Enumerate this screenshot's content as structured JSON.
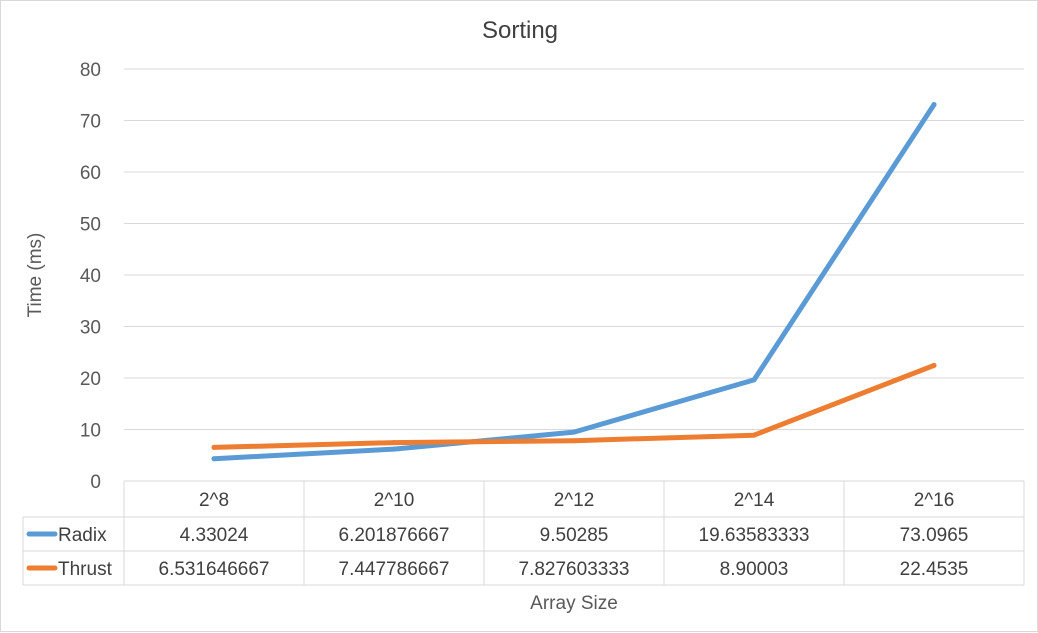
{
  "chart_data": {
    "type": "line",
    "title": "Sorting",
    "xlabel": "Array Size",
    "ylabel": "Time (ms)",
    "categories": [
      "2^8",
      "2^10",
      "2^12",
      "2^14",
      "2^16"
    ],
    "ylim": [
      0,
      80
    ],
    "yticks": [
      0,
      10,
      20,
      30,
      40,
      50,
      60,
      70,
      80
    ],
    "grid": true,
    "legend": "data-table",
    "series": [
      {
        "name": "Radix",
        "color": "#5b9bd5",
        "values": [
          4.33024,
          6.201876667,
          9.50285,
          19.63583333,
          73.0965
        ],
        "labels": [
          "4.33024",
          "6.201876667",
          "9.50285",
          "19.63583333",
          "73.0965"
        ]
      },
      {
        "name": "Thrust",
        "color": "#ed7d31",
        "values": [
          6.531646667,
          7.447786667,
          7.827603333,
          8.90003,
          22.4535
        ],
        "labels": [
          "6.531646667",
          "7.447786667",
          "7.827603333",
          "8.90003",
          "22.4535"
        ]
      }
    ]
  }
}
